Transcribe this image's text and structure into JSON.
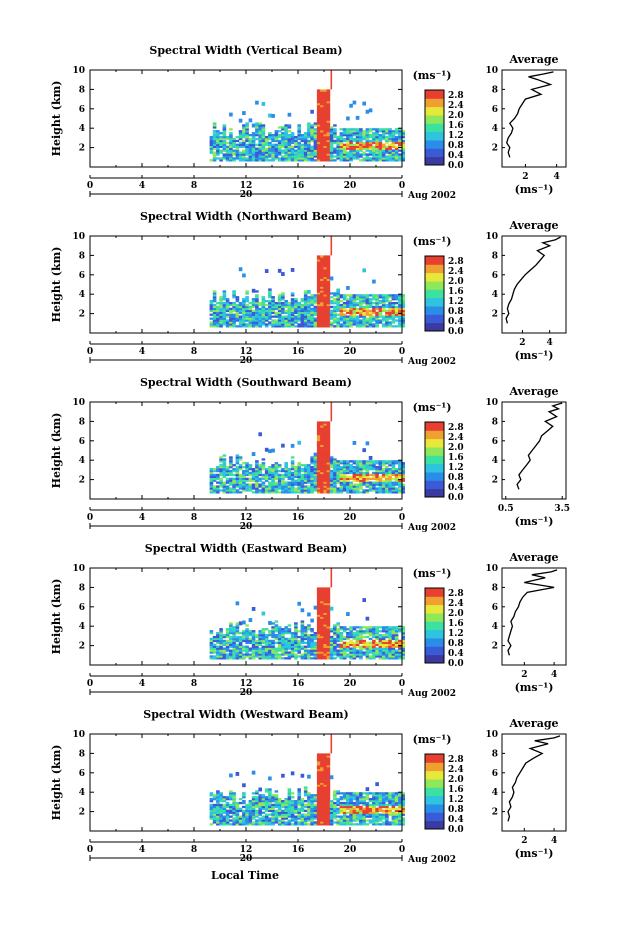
{
  "chart_data": {
    "type": "heatmap",
    "panels": [
      {
        "title": "Spectral Width (Vertical Beam)",
        "average_profile": [
          [
            1.0,
            1.0
          ],
          [
            0.9,
            1.5
          ],
          [
            1.0,
            2.0
          ],
          [
            0.8,
            2.5
          ],
          [
            0.9,
            3.0
          ],
          [
            1.1,
            3.5
          ],
          [
            1.2,
            4.0
          ],
          [
            1.0,
            4.5
          ],
          [
            1.3,
            5.0
          ],
          [
            1.5,
            5.5
          ],
          [
            1.6,
            6.0
          ],
          [
            1.8,
            6.5
          ],
          [
            2.0,
            7.0
          ],
          [
            3.0,
            7.5
          ],
          [
            2.4,
            8.0
          ],
          [
            3.6,
            8.5
          ],
          [
            2.8,
            9.0
          ],
          [
            2.2,
            9.3
          ],
          [
            3.2,
            9.6
          ],
          [
            3.8,
            9.8
          ]
        ],
        "average_xticks": [
          "2",
          "4"
        ],
        "average_xlim": [
          0.5,
          4.6
        ]
      },
      {
        "title": "Spectral Width (Northward Beam)",
        "average_profile": [
          [
            0.9,
            1.0
          ],
          [
            0.8,
            1.5
          ],
          [
            1.0,
            2.0
          ],
          [
            0.9,
            2.5
          ],
          [
            1.0,
            3.0
          ],
          [
            1.2,
            3.5
          ],
          [
            1.3,
            4.0
          ],
          [
            1.4,
            4.5
          ],
          [
            1.6,
            5.0
          ],
          [
            1.9,
            5.5
          ],
          [
            2.2,
            6.0
          ],
          [
            2.6,
            6.5
          ],
          [
            3.0,
            7.0
          ],
          [
            3.3,
            7.5
          ],
          [
            3.6,
            8.0
          ],
          [
            3.1,
            8.5
          ],
          [
            4.0,
            9.0
          ],
          [
            3.5,
            9.3
          ],
          [
            4.4,
            9.6
          ],
          [
            4.8,
            9.9
          ]
        ],
        "average_xticks": [
          "2",
          "4"
        ],
        "average_xlim": [
          0.5,
          5.2
        ]
      },
      {
        "title": "Spectral Width (Southward Beam)",
        "average_profile": [
          [
            1.2,
            1.0
          ],
          [
            1.1,
            1.5
          ],
          [
            1.3,
            2.0
          ],
          [
            1.2,
            2.5
          ],
          [
            1.4,
            3.0
          ],
          [
            1.6,
            3.5
          ],
          [
            1.8,
            4.0
          ],
          [
            1.7,
            4.5
          ],
          [
            1.9,
            5.0
          ],
          [
            2.1,
            5.5
          ],
          [
            2.3,
            6.0
          ],
          [
            2.4,
            6.5
          ],
          [
            2.7,
            7.0
          ],
          [
            3.0,
            7.5
          ],
          [
            2.6,
            8.0
          ],
          [
            3.2,
            8.5
          ],
          [
            2.8,
            9.0
          ],
          [
            3.3,
            9.3
          ],
          [
            3.0,
            9.6
          ],
          [
            3.5,
            9.9
          ]
        ],
        "average_xticks": [
          "0.5",
          "3.5"
        ],
        "average_xlim": [
          0.3,
          3.7
        ]
      },
      {
        "title": "Spectral Width (Eastward Beam)",
        "average_profile": [
          [
            1.0,
            1.0
          ],
          [
            0.9,
            1.5
          ],
          [
            1.1,
            2.0
          ],
          [
            0.9,
            2.5
          ],
          [
            1.0,
            3.0
          ],
          [
            1.1,
            3.5
          ],
          [
            1.2,
            4.0
          ],
          [
            1.1,
            4.5
          ],
          [
            1.3,
            5.0
          ],
          [
            1.4,
            5.5
          ],
          [
            1.6,
            6.0
          ],
          [
            1.7,
            6.5
          ],
          [
            1.9,
            7.0
          ],
          [
            2.2,
            7.5
          ],
          [
            4.0,
            8.0
          ],
          [
            2.0,
            8.5
          ],
          [
            3.4,
            9.0
          ],
          [
            2.5,
            9.3
          ],
          [
            3.8,
            9.6
          ],
          [
            4.2,
            9.8
          ]
        ],
        "average_xticks": [
          "2",
          "4"
        ],
        "average_xlim": [
          0.5,
          4.8
        ]
      },
      {
        "title": "Spectral Width (Westward Beam)",
        "average_profile": [
          [
            0.9,
            1.0
          ],
          [
            1.0,
            1.5
          ],
          [
            0.9,
            2.0
          ],
          [
            1.1,
            2.5
          ],
          [
            1.0,
            3.0
          ],
          [
            1.2,
            3.5
          ],
          [
            1.3,
            4.0
          ],
          [
            1.2,
            4.5
          ],
          [
            1.4,
            5.0
          ],
          [
            1.5,
            5.5
          ],
          [
            1.7,
            6.0
          ],
          [
            1.9,
            6.5
          ],
          [
            2.1,
            7.0
          ],
          [
            2.6,
            7.5
          ],
          [
            3.2,
            8.0
          ],
          [
            2.4,
            8.5
          ],
          [
            3.6,
            9.0
          ],
          [
            2.7,
            9.3
          ],
          [
            4.0,
            9.6
          ],
          [
            4.4,
            9.8
          ]
        ],
        "average_xticks": [
          "2",
          "4"
        ],
        "average_xlim": [
          0.5,
          4.8
        ]
      }
    ],
    "ylabel": "Height (km)",
    "ylim": [
      0,
      10
    ],
    "yticks": [
      "2",
      "4",
      "6",
      "8",
      "10"
    ],
    "xlim": [
      0,
      24
    ],
    "xticks": [
      "0",
      "4",
      "8",
      "12",
      "16",
      "20",
      "0"
    ],
    "date_marker": "20",
    "date_label": "Aug 2002",
    "xlabel": "Local Time",
    "colorbar_unit": "(ms⁻¹)",
    "colorbar_ticks": [
      "0.0",
      "0.4",
      "0.8",
      "1.2",
      "1.6",
      "2.0",
      "2.4",
      "2.8"
    ],
    "colorbar_range": [
      0,
      3.0
    ],
    "colormap": [
      "#3a3aa0",
      "#3a5ad8",
      "#2a8ee8",
      "#2ec4e0",
      "#3ce0a0",
      "#8ee85a",
      "#e8e83a",
      "#f0a030",
      "#e84030"
    ],
    "average_title": "Average",
    "average_xlabel": "(ms⁻¹)",
    "average_yticks": [
      "2",
      "4",
      "6",
      "8",
      "10"
    ],
    "echo_regions": {
      "data_start_hour": 9.2,
      "data_end_hour": 24.0,
      "low_layer_top_km": 3.0,
      "broken_layer_top_km": 6.5,
      "convective_core_hours": [
        17.3,
        18.4
      ],
      "convective_core_top_km": 8.0,
      "spike_hour": 18.5,
      "spike_top_km": 10.0
    }
  }
}
